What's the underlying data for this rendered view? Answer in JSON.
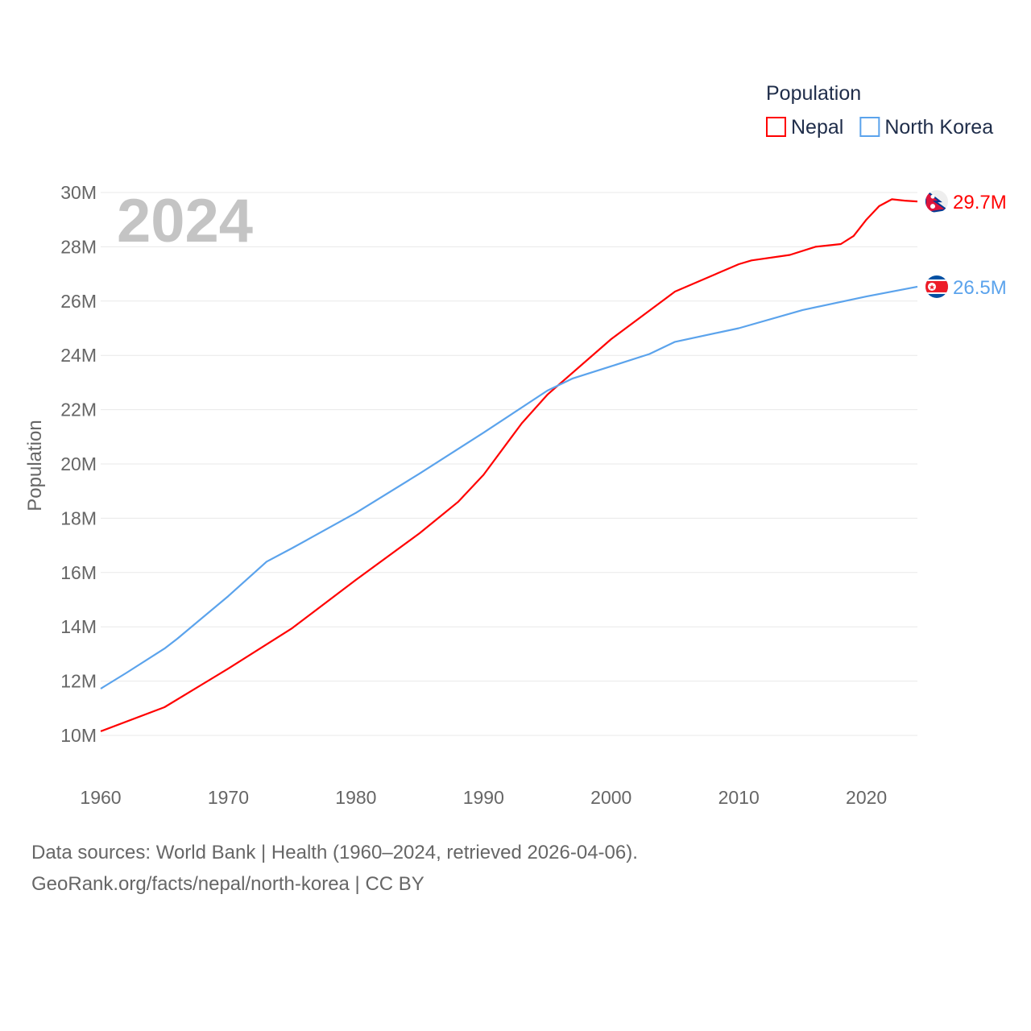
{
  "chart_data": {
    "type": "line",
    "title": "",
    "year_label": "2024",
    "xlabel": "",
    "ylabel": "Population",
    "xlim": [
      1960,
      2024
    ],
    "ylim": [
      10,
      30
    ],
    "x_ticks": [
      "1960",
      "1970",
      "1980",
      "1990",
      "2000",
      "2010",
      "2020"
    ],
    "y_ticks": [
      "10M",
      "12M",
      "14M",
      "16M",
      "18M",
      "20M",
      "22M",
      "24M",
      "26M",
      "28M",
      "30M"
    ],
    "grid": true,
    "legend": {
      "title": "Population",
      "placement": "top-right"
    },
    "units": "millions",
    "series": [
      {
        "name": "Nepal",
        "color": "#ff0000",
        "end_label": "29.7M",
        "flag": "nepal-flag",
        "x": [
          1960,
          1965,
          1970,
          1975,
          1980,
          1985,
          1988,
          1990,
          1993,
          1995,
          2000,
          2005,
          2010,
          2011,
          2014,
          2016,
          2018,
          2019,
          2020,
          2021,
          2022,
          2023,
          2024
        ],
        "values": [
          10.15,
          11.04,
          12.46,
          13.95,
          15.73,
          17.45,
          18.6,
          19.6,
          21.5,
          22.55,
          24.6,
          26.35,
          27.36,
          27.5,
          27.7,
          28.0,
          28.1,
          28.4,
          29.0,
          29.5,
          29.75,
          29.7,
          29.67
        ]
      },
      {
        "name": "North Korea",
        "color": "#5ba3ec",
        "end_label": "26.5M",
        "flag": "north-korea-flag",
        "x": [
          1960,
          1962,
          1965,
          1966,
          1970,
          1973,
          1975,
          1980,
          1985,
          1990,
          1995,
          1997,
          2000,
          2003,
          2005,
          2010,
          2015,
          2020,
          2024
        ],
        "values": [
          11.72,
          12.3,
          13.2,
          13.56,
          15.13,
          16.4,
          16.9,
          18.2,
          19.65,
          21.15,
          22.7,
          23.15,
          23.6,
          24.05,
          24.5,
          25.0,
          25.67,
          26.17,
          26.53
        ]
      }
    ]
  },
  "footer": {
    "line1": "Data sources: World Bank | Health (1960–2024, retrieved 2026-04-06).",
    "line2": "GeoRank.org/facts/nepal/north-korea | CC BY"
  }
}
